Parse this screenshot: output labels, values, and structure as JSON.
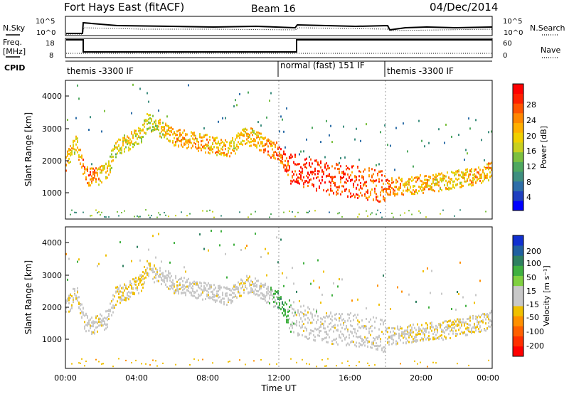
{
  "header": {
    "radar": "Fort Hays East (fitACF)",
    "beam": "Beam 16",
    "date": "04/Dec/2014"
  },
  "noise_panel": {
    "left_label": "N.Sky",
    "right_label": "N.Search",
    "left_ticks": [
      "10^5",
      "10^0"
    ],
    "right_ticks": [
      "10^5",
      "10^0"
    ]
  },
  "freq_panel": {
    "left_label_1": "Freq.",
    "left_label_2": "[MHz]",
    "right_label": "Nave",
    "left_ticks": [
      "18",
      "8"
    ],
    "right_ticks": [
      "60",
      "0"
    ]
  },
  "cpid_panel": {
    "label": "CPID",
    "segments": [
      {
        "label": "themis -3300 IF",
        "start_hour": 0,
        "end_hour": 13
      },
      {
        "label": "normal (fast) 151 IF",
        "start_hour": 13,
        "end_hour": 18
      },
      {
        "label": "themis -3300 IF",
        "start_hour": 18,
        "end_hour": 24
      }
    ]
  },
  "axes": {
    "xlabel": "Time UT",
    "ylabel": "Slant Range [km]",
    "x_ticks": [
      "00:00",
      "04:00",
      "08:00",
      "12:00",
      "16:00",
      "20:00",
      "00:00"
    ],
    "y_ticks": [
      "1000",
      "2000",
      "3000",
      "4000"
    ]
  },
  "power_bar": {
    "label": "Power [dB]",
    "ticks": [
      "28",
      "24",
      "20",
      "16",
      "12",
      "8",
      "4"
    ],
    "colors": [
      "#0000ff",
      "#1f3fc0",
      "#2e6ea8",
      "#3f8f80",
      "#4fa860",
      "#7cc040",
      "#c8d020",
      "#f0d000",
      "#ffb000",
      "#ff8800",
      "#ff5500",
      "#ff2000",
      "#ff0000"
    ]
  },
  "velocity_bar": {
    "label": "Velocity [m s⁻¹]",
    "ticks": [
      "200",
      "100",
      "50",
      "15",
      "-15",
      "-50",
      "-100",
      "-200"
    ],
    "colors": [
      "#1030d0",
      "#2060a0",
      "#2e8060",
      "#40b040",
      "#80d040",
      "#c8c8c8",
      "#c8c8c8",
      "#f0c000",
      "#ff9000",
      "#ff6000",
      "#ff3000",
      "#ff0000"
    ]
  },
  "chart_data": [
    {
      "type": "heatmap",
      "title": "Power [dB]",
      "xlabel": "Time UT",
      "ylabel": "Slant Range [km]",
      "xlim": [
        0,
        24
      ],
      "ylim": [
        180,
        4500
      ],
      "colorbar_range": [
        0,
        30
      ],
      "backscatter_band": {
        "x": [
          0.0,
          0.3,
          0.6,
          1.0,
          1.3,
          1.8,
          2.3,
          2.8,
          3.5,
          4.2,
          4.6,
          5.0,
          5.5,
          6.0,
          7.0,
          8.0,
          9.0,
          9.5,
          10.0,
          10.5,
          11.0,
          11.5,
          12.0,
          12.5,
          13.0,
          13.5,
          14.0,
          14.5,
          15.0,
          16.0,
          17.0,
          18.0,
          19.0,
          20.0,
          21.0,
          22.0,
          23.0,
          24.0
        ],
        "y": [
          2000,
          2300,
          2600,
          1700,
          1500,
          1550,
          1700,
          2400,
          2600,
          2800,
          3300,
          3100,
          3000,
          2800,
          2650,
          2550,
          2400,
          2500,
          2800,
          2750,
          2600,
          2400,
          2300,
          1800,
          1700,
          1600,
          1550,
          1500,
          1450,
          1400,
          1300,
          1200,
          1250,
          1300,
          1350,
          1450,
          1550,
          1700
        ],
        "power_db": [
          20,
          18,
          16,
          22,
          24,
          20,
          18,
          16,
          18,
          16,
          14,
          16,
          18,
          20,
          20,
          20,
          20,
          18,
          18,
          18,
          20,
          22,
          24,
          26,
          28,
          28,
          28,
          28,
          26,
          26,
          24,
          24,
          20,
          20,
          18,
          18,
          20,
          20
        ]
      }
    },
    {
      "type": "heatmap",
      "title": "Velocity [m s⁻¹]",
      "xlabel": "Time UT",
      "ylabel": "Slant Range [km]",
      "xlim": [
        0,
        24
      ],
      "ylim": [
        180,
        4500
      ],
      "colorbar_range": [
        -200,
        200
      ],
      "backscatter_band": {
        "x": [
          0.0,
          0.3,
          0.6,
          1.0,
          1.3,
          1.8,
          2.3,
          2.8,
          3.5,
          4.2,
          4.6,
          5.0,
          5.5,
          6.0,
          7.0,
          8.0,
          9.0,
          9.5,
          10.0,
          10.5,
          11.0,
          11.5,
          12.0,
          12.5,
          13.0,
          13.5,
          14.0,
          14.5,
          15.0,
          16.0,
          17.0,
          18.0,
          19.0,
          20.0,
          21.0,
          22.0,
          23.0,
          24.0
        ],
        "y": [
          2000,
          2300,
          2600,
          1700,
          1500,
          1550,
          1700,
          2400,
          2600,
          2800,
          3300,
          3100,
          3000,
          2800,
          2650,
          2550,
          2400,
          2500,
          2800,
          2750,
          2600,
          2400,
          2300,
          1800,
          1700,
          1600,
          1550,
          1500,
          1450,
          1400,
          1300,
          1200,
          1250,
          1300,
          1350,
          1450,
          1550,
          1700
        ],
        "velocity": [
          0,
          -20,
          -20,
          0,
          0,
          -10,
          0,
          -30,
          -20,
          -40,
          -30,
          -10,
          0,
          0,
          0,
          0,
          0,
          0,
          -10,
          0,
          0,
          20,
          60,
          40,
          0,
          0,
          0,
          0,
          0,
          0,
          0,
          0,
          -10,
          -20,
          -20,
          -30,
          -20,
          0
        ]
      }
    }
  ]
}
